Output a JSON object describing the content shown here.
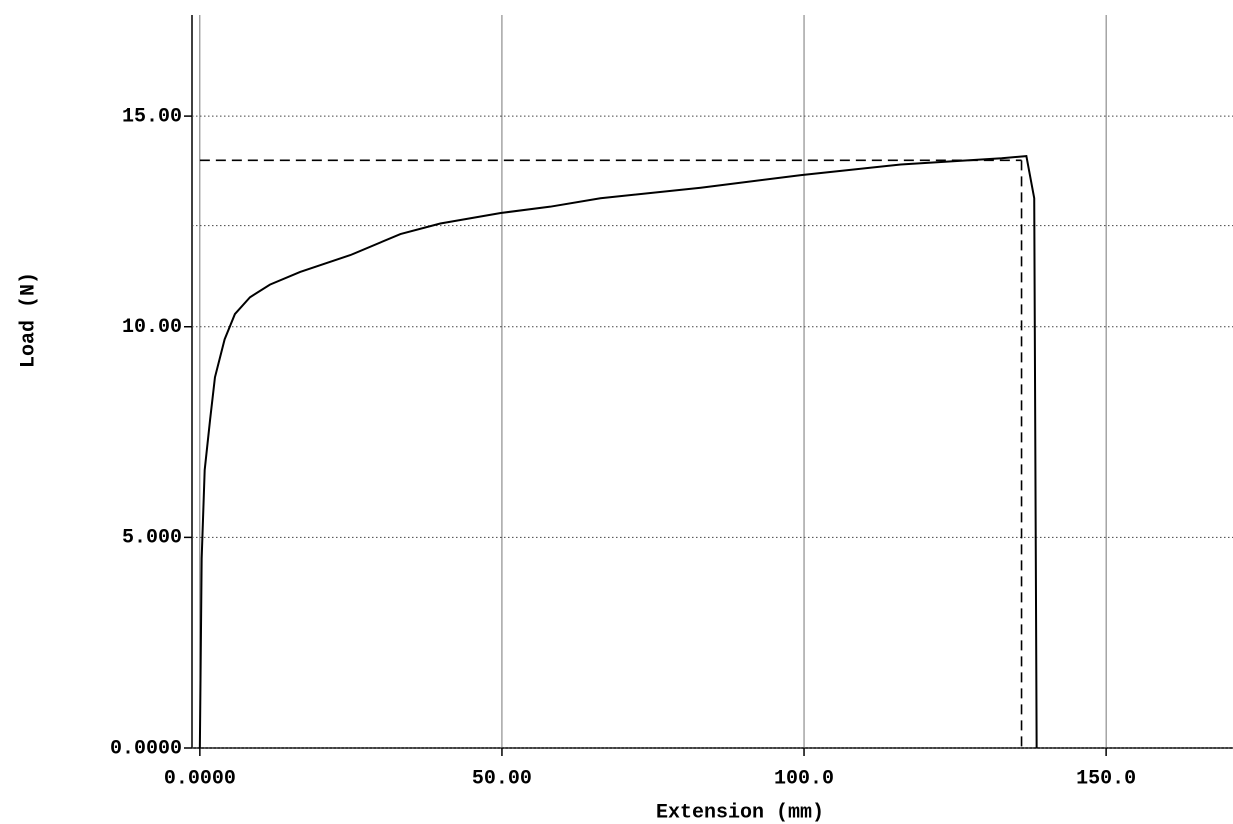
{
  "chart_data": {
    "type": "line",
    "x_label": "Extension (mm)",
    "y_label": "Load (N)",
    "x": [
      0,
      0.3,
      0.8,
      1.7,
      2.5,
      4.1,
      5.8,
      8.3,
      11.6,
      16.6,
      24.9,
      33.2,
      39.8,
      49.8,
      58,
      66.3,
      82.9,
      99.5,
      116,
      132.7,
      136.8,
      138.1,
      138.5
    ],
    "series": [
      {
        "color": "#000000",
        "values": [
          0,
          4.5,
          6.6,
          7.8,
          8.8,
          9.7,
          10.3,
          10.7,
          11.0,
          11.3,
          11.7,
          12.2,
          12.45,
          12.7,
          12.85,
          13.05,
          13.3,
          13.6,
          13.85,
          14.0,
          14.05,
          13.05,
          0
        ]
      }
    ],
    "xlim": [
      -1.3,
      171
    ],
    "ylim": [
      0,
      17.4
    ],
    "xticks": [
      {
        "value": 0,
        "label": "0.0000"
      },
      {
        "value": 50,
        "label": "50.00"
      },
      {
        "value": 100,
        "label": "100.0"
      },
      {
        "value": 150,
        "label": "150.0"
      }
    ],
    "yticks": [
      {
        "value": 0,
        "label": "0.0000"
      },
      {
        "value": 5,
        "label": "5.000"
      },
      {
        "value": 10,
        "label": "10.00"
      },
      {
        "value": 15,
        "label": "15.00"
      }
    ],
    "grid": true,
    "peak_x": 136.0,
    "peak_y": 13.95,
    "ref_y": 12.4
  }
}
